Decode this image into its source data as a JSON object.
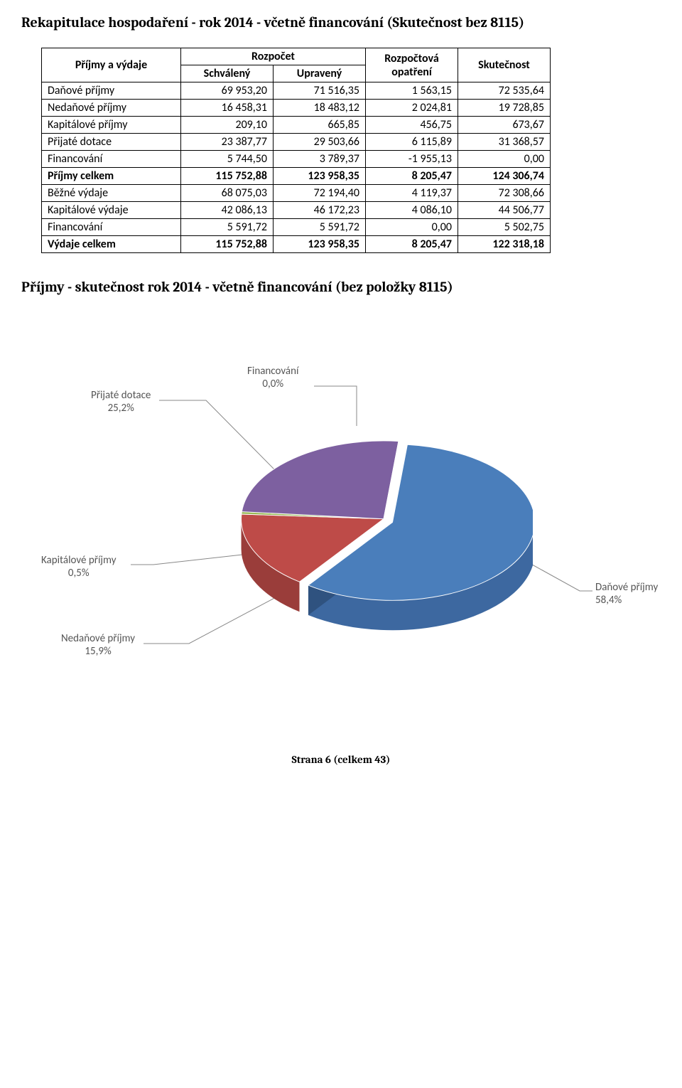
{
  "title_main": "Rekapitulace hospodaření - rok 2014 - včetně financování (Skutečnost bez 8115)",
  "title_chart": "Příjmy - skutečnost rok 2014 - včetně financování (bez položky 8115)",
  "footer": "Strana 6 (celkem 43)",
  "table": {
    "header": {
      "rowlabel": "Příjmy a výdaje",
      "group1": "Rozpočet",
      "sub1a": "Schválený",
      "sub1b": "Upravený",
      "col3": "Rozpočtová opatření",
      "col4": "Skutečnost"
    },
    "rows": [
      {
        "label": "Daňové příjmy",
        "c1": "69 953,20",
        "c2": "71 516,35",
        "c3": "1 563,15",
        "c4": "72 535,64",
        "bold": false
      },
      {
        "label": "Nedaňové příjmy",
        "c1": "16 458,31",
        "c2": "18 483,12",
        "c3": "2 024,81",
        "c4": "19 728,85",
        "bold": false
      },
      {
        "label": "Kapitálové příjmy",
        "c1": "209,10",
        "c2": "665,85",
        "c3": "456,75",
        "c4": "673,67",
        "bold": false
      },
      {
        "label": "Přijaté dotace",
        "c1": "23 387,77",
        "c2": "29 503,66",
        "c3": "6 115,89",
        "c4": "31 368,57",
        "bold": false
      },
      {
        "label": "Financování",
        "c1": "5 744,50",
        "c2": "3 789,37",
        "c3": "-1 955,13",
        "c4": "0,00",
        "bold": false
      },
      {
        "label": "Příjmy celkem",
        "c1": "115 752,88",
        "c2": "123 958,35",
        "c3": "8 205,47",
        "c4": "124 306,74",
        "bold": true
      },
      {
        "label": "Běžné výdaje",
        "c1": "68 075,03",
        "c2": "72 194,40",
        "c3": "4 119,37",
        "c4": "72 308,66",
        "bold": false
      },
      {
        "label": "Kapitálové výdaje",
        "c1": "42 086,13",
        "c2": "46 172,23",
        "c3": "4 086,10",
        "c4": "44 506,77",
        "bold": false
      },
      {
        "label": "Financování",
        "c1": "5 591,72",
        "c2": "5 591,72",
        "c3": "0,00",
        "c4": "5 502,75",
        "bold": false
      },
      {
        "label": "Výdaje celkem",
        "c1": "115 752,88",
        "c2": "123 958,35",
        "c3": "8 205,47",
        "c4": "122 318,18",
        "bold": true
      }
    ]
  },
  "pie": {
    "type": "pie-3d",
    "slices": [
      {
        "key": "danove",
        "label": "Daňové příjmy",
        "pct_text": "58,4%",
        "value": 58.4,
        "fill": "#4A7EBB",
        "side": "#3D68A0",
        "side_dark": "#2F527F"
      },
      {
        "key": "nedanove",
        "label": "Nedaňové příjmy",
        "pct_text": "15,9%",
        "value": 15.9,
        "fill": "#BE4B48",
        "side": "#9A3D3A",
        "side_dark": "#7A302E"
      },
      {
        "key": "kapitalove",
        "label": "Kapitálové příjmy",
        "pct_text": "0,5%",
        "value": 0.5,
        "fill": "#98B954",
        "side": "#7D9845",
        "side_dark": "#637837"
      },
      {
        "key": "dotace",
        "label": "Přijaté dotace",
        "pct_text": "25,2%",
        "value": 25.2,
        "fill": "#7D60A0",
        "side": "#684F86",
        "side_dark": "#523E6A"
      },
      {
        "key": "financ",
        "label": "Financování",
        "pct_text": "0,0%",
        "value": 0.0,
        "fill": "#46AAC5",
        "side": "#3A8DA3"
      }
    ],
    "label_fontsize": 15,
    "label_color": "#595959",
    "stroke": "#ffffff",
    "background": "#ffffff"
  }
}
